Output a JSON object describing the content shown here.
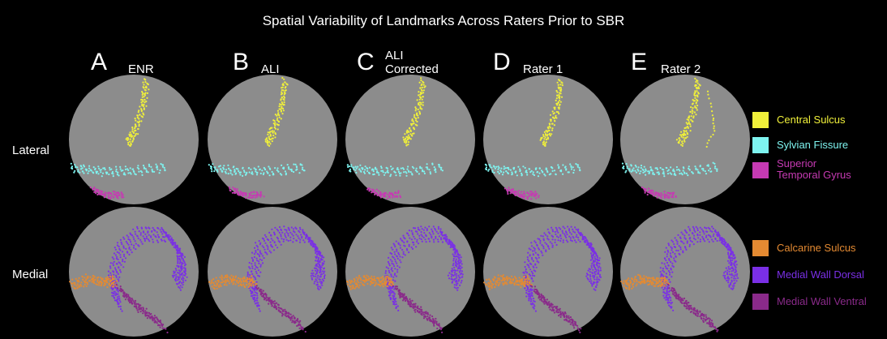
{
  "title": "Spatial Variability of Landmarks Across Raters Prior to SBR",
  "columns": [
    {
      "letter": "A",
      "name": "ENR"
    },
    {
      "letter": "B",
      "name": "ALI"
    },
    {
      "letter": "C",
      "name": "ALI Corrected"
    },
    {
      "letter": "D",
      "name": "Rater 1"
    },
    {
      "letter": "E",
      "name": "Rater 2"
    }
  ],
  "rows": [
    "Lateral",
    "Medial"
  ],
  "legend": {
    "lateral": [
      {
        "label": "Central Sulcus",
        "color": "#f0f03a"
      },
      {
        "label": "Sylvian Fissure",
        "color": "#7ef4f0"
      },
      {
        "label": "Superior Temporal Gyrus",
        "color": "#c63ab3"
      }
    ],
    "medial": [
      {
        "label": "Calcarine Sulcus",
        "color": "#e48a32"
      },
      {
        "label": "Medial Wall Dorsal",
        "color": "#7a2fe6"
      },
      {
        "label": "Medial Wall Ventral",
        "color": "#8a2a8a"
      }
    ]
  },
  "colors": {
    "background": "#000000",
    "brain": "#8c8c8c"
  }
}
